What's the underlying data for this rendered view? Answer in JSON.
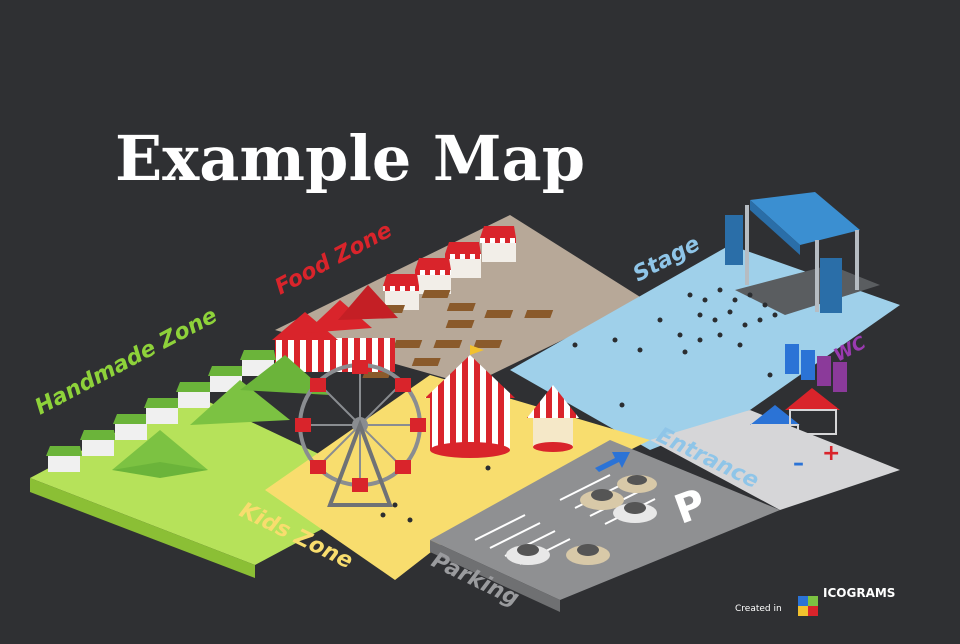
{
  "title": "Example Map",
  "zones": {
    "handmade": "Handmade Zone",
    "food": "Food Zone",
    "stage": "Stage",
    "wc": "WC",
    "entrance": "Entrance",
    "kids": "Kids Zone",
    "parking": "Parking"
  },
  "parking_sign": "P",
  "footer": {
    "created_in": "Created in",
    "brand": "ICOGRAMS"
  },
  "colors": {
    "background": "#2f3033",
    "handmade": "#b6e25a",
    "food": "#b7a898",
    "stage": "#9fd0ea",
    "kids": "#f8dd6e",
    "parking": "#8f9092",
    "entrance": "#d6d6d8",
    "tent_red": "#d9242b",
    "tent_green": "#7cc242",
    "stage_blue": "#3b8fd1",
    "wc_purple": "#8b3a9a"
  }
}
